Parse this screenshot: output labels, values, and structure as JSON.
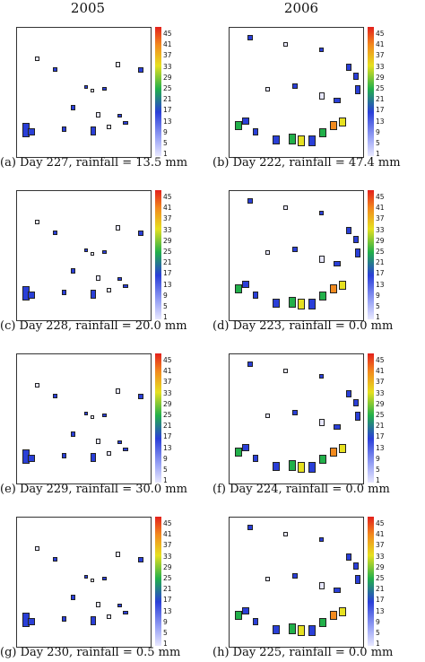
{
  "columns": [
    "2005",
    "2006"
  ],
  "colorbar_ticks": [
    "45",
    "41",
    "37",
    "33",
    "29",
    "25",
    "21",
    "17",
    "13",
    "9",
    "5",
    "1"
  ],
  "colors": {
    "low": "#e8e8ff",
    "blue": "#2a3fd8",
    "green": "#22b04a",
    "yellow": "#e6e020",
    "orange": "#f28a1e",
    "red": "#e3201c"
  },
  "panels": [
    {
      "caption": "(a) Day 227, rainfall = 13.5 mm"
    },
    {
      "caption": "(b) Day 222, rainfall = 47.4 mm"
    },
    {
      "caption": "(c) Day 228, rainfall = 20.0 mm"
    },
    {
      "caption": "(d) Day 223, rainfall = 0.0 mm"
    },
    {
      "caption": "(e) Day 229, rainfall = 30.0 mm"
    },
    {
      "caption": "(f) Day 224, rainfall = 0.0 mm"
    },
    {
      "caption": "(g) Day 230, rainfall = 0.5 mm"
    },
    {
      "caption": "(h) Day 225, rainfall = 0.0 mm"
    }
  ]
}
